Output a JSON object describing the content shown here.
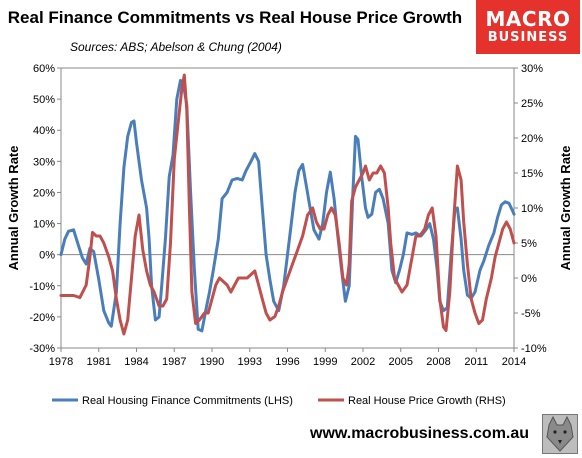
{
  "title": "Real Finance Commitments vs Real House Price Growth",
  "subtitle": "Sources: ABS; Abelson & Chung (2004)",
  "logo": {
    "line1": "MACRO",
    "line2": "BUSINESS"
  },
  "website": "www.macrobusiness.com.au",
  "chart_data": {
    "type": "line",
    "title": "Real Finance Commitments vs Real House Price Growth",
    "ylabel": "Annual Growth Rate",
    "y2label": "Annual Growth Rate",
    "x_range": [
      1978,
      2014
    ],
    "x_ticks": [
      "1978",
      "1981",
      "1984",
      "1987",
      "1990",
      "1993",
      "1996",
      "1999",
      "2002",
      "2005",
      "2008",
      "2011",
      "2014"
    ],
    "y_left": {
      "min": -30,
      "max": 60,
      "step": 10,
      "unit": "%"
    },
    "y_right": {
      "min": -10,
      "max": 30,
      "step": 5,
      "unit": "%"
    },
    "grid": false,
    "legend_position": "bottom",
    "series": [
      {
        "name": "Real Housing Finance Commitments (LHS)",
        "axis": "left",
        "color": "#4a7ebb",
        "points": [
          [
            1978,
            0
          ],
          [
            1978.3,
            5
          ],
          [
            1978.6,
            7.5
          ],
          [
            1979,
            8
          ],
          [
            1979.3,
            4
          ],
          [
            1979.7,
            -1
          ],
          [
            1980,
            -3
          ],
          [
            1980.3,
            2
          ],
          [
            1980.6,
            1
          ],
          [
            1981,
            -8
          ],
          [
            1981.4,
            -18
          ],
          [
            1981.8,
            -22
          ],
          [
            1982,
            -23
          ],
          [
            1982.4,
            -12
          ],
          [
            1982.7,
            10
          ],
          [
            1983,
            28
          ],
          [
            1983.3,
            38
          ],
          [
            1983.6,
            42.5
          ],
          [
            1983.8,
            43
          ],
          [
            1984,
            36
          ],
          [
            1984.4,
            24
          ],
          [
            1984.8,
            15
          ],
          [
            1985,
            5
          ],
          [
            1985.2,
            -10
          ],
          [
            1985.5,
            -21
          ],
          [
            1985.8,
            -20
          ],
          [
            1986,
            -10
          ],
          [
            1986.3,
            5
          ],
          [
            1986.6,
            25
          ],
          [
            1986.9,
            32
          ],
          [
            1987.2,
            50
          ],
          [
            1987.5,
            56
          ],
          [
            1987.8,
            53
          ],
          [
            1988,
            48
          ],
          [
            1988.3,
            20
          ],
          [
            1988.6,
            -5
          ],
          [
            1988.9,
            -24
          ],
          [
            1989.2,
            -24.5
          ],
          [
            1989.5,
            -18
          ],
          [
            1989.8,
            -12
          ],
          [
            1990.1,
            -5
          ],
          [
            1990.5,
            5
          ],
          [
            1990.8,
            18
          ],
          [
            1991.2,
            20
          ],
          [
            1991.6,
            24
          ],
          [
            1992,
            24.5
          ],
          [
            1992.4,
            24
          ],
          [
            1992.7,
            27
          ],
          [
            1993.1,
            30
          ],
          [
            1993.4,
            32.5
          ],
          [
            1993.7,
            30
          ],
          [
            1994,
            15
          ],
          [
            1994.3,
            0
          ],
          [
            1994.6,
            -8
          ],
          [
            1994.9,
            -15
          ],
          [
            1995.3,
            -18
          ],
          [
            1995.7,
            -10
          ],
          [
            1996,
            0
          ],
          [
            1996.3,
            10
          ],
          [
            1996.6,
            20
          ],
          [
            1996.9,
            27
          ],
          [
            1997.2,
            29
          ],
          [
            1997.5,
            22
          ],
          [
            1997.8,
            15
          ],
          [
            1998.1,
            8
          ],
          [
            1998.5,
            5
          ],
          [
            1998.8,
            10
          ],
          [
            1999.1,
            20
          ],
          [
            1999.4,
            26.5
          ],
          [
            1999.7,
            18
          ],
          [
            2000,
            6
          ],
          [
            2000.3,
            -5
          ],
          [
            2000.6,
            -15
          ],
          [
            2000.9,
            -10
          ],
          [
            2001.2,
            20
          ],
          [
            2001.4,
            38
          ],
          [
            2001.6,
            37
          ],
          [
            2001.9,
            25
          ],
          [
            2002.2,
            15
          ],
          [
            2002.4,
            12
          ],
          [
            2002.7,
            13
          ],
          [
            2003,
            20
          ],
          [
            2003.3,
            21
          ],
          [
            2003.6,
            18
          ],
          [
            2004,
            10
          ],
          [
            2004.3,
            -5
          ],
          [
            2004.6,
            -9
          ],
          [
            2004.9,
            -5
          ],
          [
            2005.2,
            0
          ],
          [
            2005.5,
            7
          ],
          [
            2005.9,
            6.5
          ],
          [
            2006.2,
            7
          ],
          [
            2006.6,
            6
          ],
          [
            2007,
            8
          ],
          [
            2007.3,
            10
          ],
          [
            2007.6,
            5
          ],
          [
            2007.9,
            -5
          ],
          [
            2008.1,
            -15
          ],
          [
            2008.4,
            -18
          ],
          [
            2008.7,
            -17
          ],
          [
            2009,
            0
          ],
          [
            2009.3,
            14.5
          ],
          [
            2009.5,
            15
          ],
          [
            2009.8,
            5
          ],
          [
            2010,
            -5
          ],
          [
            2010.3,
            -13
          ],
          [
            2010.6,
            -14
          ],
          [
            2010.9,
            -12
          ],
          [
            2011.3,
            -5
          ],
          [
            2011.6,
            -2
          ],
          [
            2012,
            3
          ],
          [
            2012.4,
            7
          ],
          [
            2012.7,
            12
          ],
          [
            2013,
            16
          ],
          [
            2013.3,
            17
          ],
          [
            2013.6,
            16.5
          ],
          [
            2013.9,
            14
          ],
          [
            2014,
            13
          ]
        ]
      },
      {
        "name": "Real House Price Growth (RHS)",
        "axis": "right",
        "color": "#c0504d",
        "points": [
          [
            1978,
            -2.5
          ],
          [
            1978.5,
            -2.5
          ],
          [
            1979,
            -2.5
          ],
          [
            1979.5,
            -2.8
          ],
          [
            1980,
            -1
          ],
          [
            1980.3,
            3
          ],
          [
            1980.5,
            6.5
          ],
          [
            1980.8,
            6
          ],
          [
            1981.1,
            6
          ],
          [
            1981.4,
            5
          ],
          [
            1981.8,
            3
          ],
          [
            1982.1,
            1
          ],
          [
            1982.4,
            -3
          ],
          [
            1982.7,
            -6
          ],
          [
            1983,
            -8
          ],
          [
            1983.3,
            -6
          ],
          [
            1983.6,
            0
          ],
          [
            1983.9,
            6
          ],
          [
            1984.2,
            9
          ],
          [
            1984.5,
            4
          ],
          [
            1984.8,
            1
          ],
          [
            1985.1,
            -1
          ],
          [
            1985.4,
            -2
          ],
          [
            1985.8,
            -4
          ],
          [
            1986.1,
            -4
          ],
          [
            1986.4,
            -3
          ],
          [
            1986.7,
            5
          ],
          [
            1987,
            17
          ],
          [
            1987.3,
            22
          ],
          [
            1987.6,
            27
          ],
          [
            1987.8,
            29
          ],
          [
            1988,
            24
          ],
          [
            1988.2,
            10
          ],
          [
            1988.4,
            -2
          ],
          [
            1988.7,
            -6.5
          ],
          [
            1989,
            -6
          ],
          [
            1989.4,
            -5
          ],
          [
            1989.7,
            -5
          ],
          [
            1990,
            -3
          ],
          [
            1990.3,
            -1
          ],
          [
            1990.6,
            0
          ],
          [
            1990.9,
            -0.5
          ],
          [
            1991.2,
            -1
          ],
          [
            1991.5,
            -2
          ],
          [
            1991.8,
            -1
          ],
          [
            1992.1,
            0
          ],
          [
            1992.4,
            0
          ],
          [
            1992.8,
            0
          ],
          [
            1993.1,
            0.5
          ],
          [
            1993.4,
            1
          ],
          [
            1993.7,
            -1
          ],
          [
            1994,
            -3
          ],
          [
            1994.3,
            -5
          ],
          [
            1994.6,
            -6
          ],
          [
            1995,
            -5.5
          ],
          [
            1995.3,
            -4
          ],
          [
            1995.6,
            -2
          ],
          [
            1996,
            0
          ],
          [
            1996.4,
            2
          ],
          [
            1996.8,
            4
          ],
          [
            1997.2,
            6
          ],
          [
            1997.6,
            9
          ],
          [
            1998,
            10
          ],
          [
            1998.3,
            8
          ],
          [
            1998.6,
            7
          ],
          [
            1998.9,
            7
          ],
          [
            1999.2,
            9
          ],
          [
            1999.5,
            10
          ],
          [
            1999.8,
            9
          ],
          [
            2000.1,
            5
          ],
          [
            2000.4,
            0
          ],
          [
            2000.7,
            -1
          ],
          [
            2000.9,
            2
          ],
          [
            2001.1,
            11
          ],
          [
            2001.4,
            13
          ],
          [
            2001.7,
            14
          ],
          [
            2002,
            15
          ],
          [
            2002.2,
            16
          ],
          [
            2002.5,
            14
          ],
          [
            2002.8,
            15
          ],
          [
            2003.1,
            15
          ],
          [
            2003.4,
            16
          ],
          [
            2003.7,
            15
          ],
          [
            2004,
            10
          ],
          [
            2004.2,
            5
          ],
          [
            2004.5,
            0
          ],
          [
            2004.8,
            -1
          ],
          [
            2005.1,
            -2
          ],
          [
            2005.5,
            -1
          ],
          [
            2005.9,
            3
          ],
          [
            2006.2,
            6
          ],
          [
            2006.5,
            6
          ],
          [
            2006.9,
            7
          ],
          [
            2007.2,
            9
          ],
          [
            2007.5,
            10
          ],
          [
            2007.8,
            6
          ],
          [
            2008.1,
            -3
          ],
          [
            2008.4,
            -7
          ],
          [
            2008.6,
            -7.5
          ],
          [
            2008.9,
            -2
          ],
          [
            2009.2,
            8
          ],
          [
            2009.5,
            16
          ],
          [
            2009.8,
            14
          ],
          [
            2010,
            8
          ],
          [
            2010.3,
            2
          ],
          [
            2010.6,
            -3
          ],
          [
            2010.9,
            -5
          ],
          [
            2011.2,
            -6.5
          ],
          [
            2011.5,
            -6
          ],
          [
            2011.8,
            -3
          ],
          [
            2012.2,
            0
          ],
          [
            2012.5,
            3
          ],
          [
            2012.8,
            5
          ],
          [
            2013.1,
            7
          ],
          [
            2013.4,
            8
          ],
          [
            2013.7,
            7
          ],
          [
            2014,
            5
          ]
        ]
      }
    ]
  }
}
